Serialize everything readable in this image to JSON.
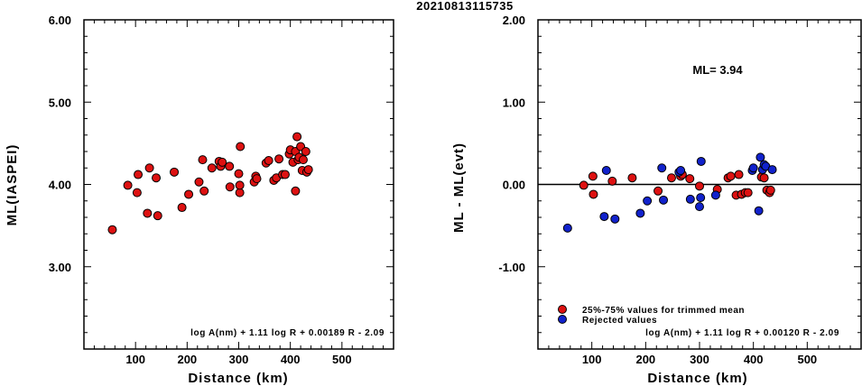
{
  "title": "20210813115735",
  "colors": {
    "red": "#dd1111",
    "blue": "#1122cc",
    "axis": "#000000"
  },
  "chart_data": [
    {
      "type": "scatter",
      "xlabel": "Distance (km)",
      "ylabel": "ML(IASPEI)",
      "xlim": [
        0,
        600
      ],
      "ylim": [
        2.0,
        6.0
      ],
      "x_ticks": [
        100,
        200,
        300,
        400,
        500
      ],
      "y_ticks": [
        3.0,
        4.0,
        5.0,
        6.0
      ],
      "x_tick_labels": [
        "100",
        "200",
        "300",
        "400",
        "500"
      ],
      "y_tick_labels": [
        "3.00",
        "4.00",
        "5.00",
        "6.00"
      ],
      "formula": "log A(nm) + 1.11 log R + 0.00189 R - 2.09",
      "series": [
        {
          "color": "red",
          "points": [
            [
              55,
              3.45
            ],
            [
              85,
              3.99
            ],
            [
              105,
              4.12
            ],
            [
              103,
              3.9
            ],
            [
              123,
              3.65
            ],
            [
              127,
              4.2
            ],
            [
              140,
              4.08
            ],
            [
              143,
              3.62
            ],
            [
              175,
              4.15
            ],
            [
              190,
              3.72
            ],
            [
              203,
              3.88
            ],
            [
              223,
              4.03
            ],
            [
              230,
              4.3
            ],
            [
              233,
              3.92
            ],
            [
              248,
              4.2
            ],
            [
              262,
              4.28
            ],
            [
              265,
              4.22
            ],
            [
              268,
              4.27
            ],
            [
              282,
              4.22
            ],
            [
              283,
              3.97
            ],
            [
              300,
              4.13
            ],
            [
              302,
              3.9
            ],
            [
              302,
              3.99
            ],
            [
              303,
              4.46
            ],
            [
              330,
              4.03
            ],
            [
              333,
              4.1
            ],
            [
              335,
              4.07
            ],
            [
              353,
              4.26
            ],
            [
              358,
              4.29
            ],
            [
              368,
              4.05
            ],
            [
              373,
              4.08
            ],
            [
              378,
              4.31
            ],
            [
              385,
              4.12
            ],
            [
              390,
              4.12
            ],
            [
              398,
              4.37
            ],
            [
              400,
              4.42
            ],
            [
              405,
              4.27
            ],
            [
              410,
              4.4
            ],
            [
              410,
              3.92
            ],
            [
              413,
              4.58
            ],
            [
              415,
              4.3
            ],
            [
              417,
              4.33
            ],
            [
              420,
              4.46
            ],
            [
              423,
              4.17
            ],
            [
              425,
              4.3
            ],
            [
              430,
              4.4
            ],
            [
              432,
              4.15
            ],
            [
              435,
              4.18
            ]
          ]
        }
      ]
    },
    {
      "type": "scatter",
      "xlabel": "Distance (km)",
      "ylabel": "ML - ML(evt)",
      "xlim": [
        0,
        600
      ],
      "ylim": [
        -2.0,
        2.0
      ],
      "x_ticks": [
        100,
        200,
        300,
        400,
        500
      ],
      "y_ticks": [
        -1.0,
        0.0,
        1.0,
        2.0
      ],
      "x_tick_labels": [
        "100",
        "200",
        "300",
        "400",
        "500"
      ],
      "y_tick_labels": [
        "-1.00",
        "0.00",
        "1.00",
        "2.00"
      ],
      "reference_line": 0.0,
      "annotation": "ML= 3.94",
      "formula": "log A(nm) + 1.11 log R + 0.00120 R - 2.09",
      "legend": [
        {
          "color": "red",
          "label": "25%-75% values for trimmed mean"
        },
        {
          "color": "blue",
          "label": "Rejected values"
        }
      ],
      "series": [
        {
          "color": "red",
          "points": [
            [
              85,
              -0.01
            ],
            [
              102,
              0.1
            ],
            [
              103,
              -0.12
            ],
            [
              138,
              0.04
            ],
            [
              175,
              0.08
            ],
            [
              223,
              -0.08
            ],
            [
              248,
              0.08
            ],
            [
              265,
              0.1
            ],
            [
              268,
              0.12
            ],
            [
              282,
              0.07
            ],
            [
              300,
              -0.02
            ],
            [
              333,
              -0.06
            ],
            [
              353,
              0.08
            ],
            [
              358,
              0.1
            ],
            [
              368,
              -0.13
            ],
            [
              373,
              0.12
            ],
            [
              378,
              -0.12
            ],
            [
              385,
              -0.1
            ],
            [
              390,
              -0.1
            ],
            [
              415,
              0.09
            ],
            [
              420,
              0.08
            ],
            [
              425,
              -0.07
            ],
            [
              430,
              -0.1
            ],
            [
              432,
              -0.07
            ]
          ]
        },
        {
          "color": "blue",
          "points": [
            [
              55,
              -0.53
            ],
            [
              123,
              -0.39
            ],
            [
              127,
              0.17
            ],
            [
              143,
              -0.42
            ],
            [
              190,
              -0.35
            ],
            [
              203,
              -0.2
            ],
            [
              230,
              0.2
            ],
            [
              233,
              -0.19
            ],
            [
              262,
              0.15
            ],
            [
              265,
              0.17
            ],
            [
              283,
              -0.18
            ],
            [
              300,
              -0.27
            ],
            [
              302,
              -0.16
            ],
            [
              303,
              0.28
            ],
            [
              330,
              -0.13
            ],
            [
              398,
              0.17
            ],
            [
              400,
              0.2
            ],
            [
              410,
              -0.32
            ],
            [
              413,
              0.33
            ],
            [
              417,
              0.18
            ],
            [
              420,
              0.24
            ],
            [
              423,
              0.22
            ],
            [
              435,
              0.18
            ]
          ]
        }
      ]
    }
  ]
}
